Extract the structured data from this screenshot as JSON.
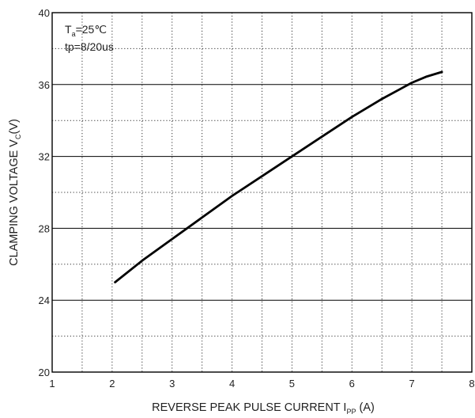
{
  "chart_data": {
    "type": "line",
    "xlabel": {
      "main": "REVERSE PEAK PULSE CURRENT  I",
      "sub": "PP",
      "tail": " (A)"
    },
    "ylabel": {
      "main": "CLAMPING VOLTAGE  V",
      "sub": "C",
      "tail": "(V)"
    },
    "xlim": [
      1,
      8
    ],
    "ylim": [
      20,
      40
    ],
    "x_ticks": [
      "1",
      "2",
      "3",
      "4",
      "5",
      "6",
      "7",
      "8"
    ],
    "y_ticks": [
      "20",
      "24",
      "28",
      "32",
      "36",
      "40"
    ],
    "minor_grid": true,
    "grid": true,
    "annotations": {
      "ta": {
        "main": "T",
        "sub": "a",
        "tail": "=25℃"
      },
      "tp": "tp=8/20us"
    },
    "series": [
      {
        "color": "#000000",
        "x": [
          2.05,
          2.5,
          3.0,
          3.5,
          4.0,
          4.5,
          5.0,
          5.5,
          6.0,
          6.5,
          7.0,
          7.25,
          7.5
        ],
        "y": [
          25.0,
          26.2,
          27.4,
          28.6,
          29.8,
          30.9,
          32.0,
          33.1,
          34.2,
          35.2,
          36.1,
          36.45,
          36.7
        ]
      }
    ]
  }
}
